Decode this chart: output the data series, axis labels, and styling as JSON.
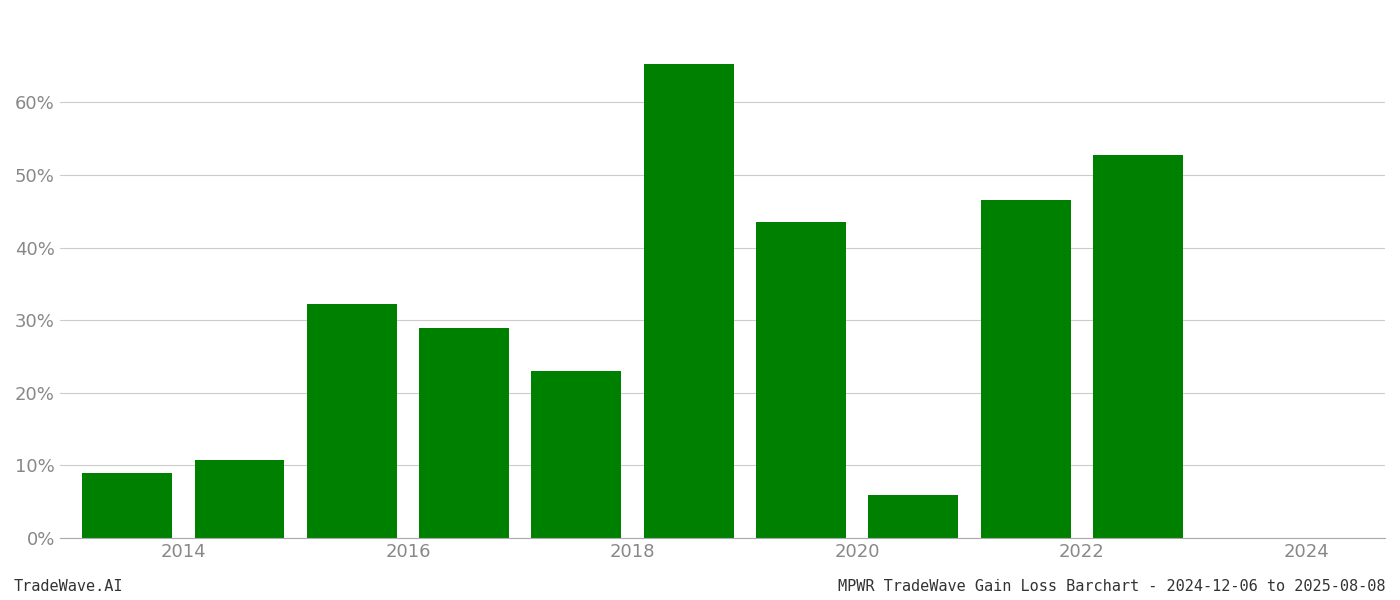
{
  "bar_positions": [
    0,
    1,
    2,
    3,
    4,
    5,
    6,
    7,
    8,
    9
  ],
  "values": [
    0.09,
    0.107,
    0.322,
    0.289,
    0.23,
    0.652,
    0.435,
    0.06,
    0.466,
    0.528
  ],
  "bar_color": "#008000",
  "background_color": "#ffffff",
  "grid_color": "#cccccc",
  "ylim": [
    0,
    0.72
  ],
  "yticks": [
    0.0,
    0.1,
    0.2,
    0.3,
    0.4,
    0.5,
    0.6
  ],
  "ytick_labels": [
    "0%",
    "10%",
    "20%",
    "30%",
    "40%",
    "50%",
    "60%"
  ],
  "xtick_positions": [
    0.5,
    2.5,
    4.5,
    6.5,
    8.5,
    10.5
  ],
  "xtick_labels": [
    "2014",
    "2016",
    "2018",
    "2020",
    "2022",
    "2024"
  ],
  "axis_color": "#aaaaaa",
  "text_color": "#888888",
  "footer_left": "TradeWave.AI",
  "footer_right": "MPWR TradeWave Gain Loss Barchart - 2024-12-06 to 2025-08-08",
  "footer_fontsize": 11,
  "tick_fontsize": 13,
  "bar_width": 0.8
}
